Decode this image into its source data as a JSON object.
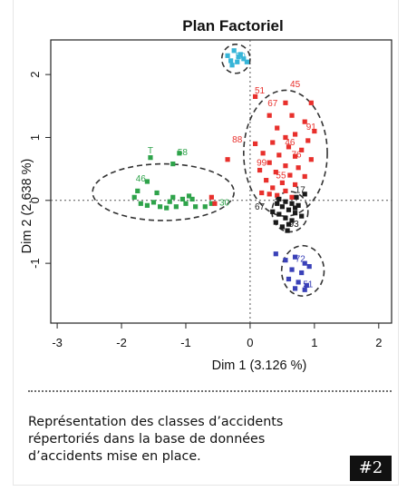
{
  "caption": "Représentation des classes d’accidents répertoriés dans la base de données d’accidents mise en place.",
  "badge": "#2",
  "colors": {
    "green": "#2ea34a",
    "red": "#e8302c",
    "black": "#1a1a1a",
    "blue": "#3a41b8",
    "cyan": "#37b5d8"
  },
  "chart_data": {
    "type": "scatter",
    "title": "Plan Factoriel",
    "xlabel": "Dim 1 (3.126 %)",
    "ylabel": "Dim 2 (2.638 %)",
    "xlim": [
      -3.1,
      2.2
    ],
    "ylim": [
      -1.95,
      2.55
    ],
    "xticks": [
      -3,
      -2,
      -1,
      0,
      1,
      2
    ],
    "yticks": [
      2,
      1,
      0,
      -1
    ],
    "reference_lines": {
      "x": 0,
      "y": 0,
      "style": "dotted"
    },
    "series": [
      {
        "color": "#2ea34a",
        "ellipse": {
          "cx": -1.35,
          "cy": 0.13,
          "rx": 1.1,
          "ry": 0.45
        },
        "points": [
          [
            -1.1,
            0.75
          ],
          [
            -1.55,
            0.68
          ],
          [
            -1.2,
            0.58
          ],
          [
            -1.6,
            0.3
          ],
          [
            -1.75,
            0.15
          ],
          [
            -1.45,
            0.12
          ],
          [
            -1.2,
            0.05
          ],
          [
            -1.05,
            0.02
          ],
          [
            -0.9,
            0.02
          ],
          [
            -1.7,
            -0.05
          ],
          [
            -1.6,
            -0.08
          ],
          [
            -1.3,
            -0.12
          ],
          [
            -1.15,
            -0.1
          ],
          [
            -1.0,
            -0.05
          ],
          [
            -0.85,
            -0.1
          ],
          [
            -0.7,
            -0.1
          ],
          [
            -1.5,
            -0.03
          ],
          [
            -1.25,
            -0.02
          ],
          [
            -0.6,
            -0.05
          ],
          [
            -1.8,
            0.05
          ],
          [
            -1.4,
            -0.1
          ],
          [
            -0.95,
            0.07
          ]
        ],
        "labels": [
          {
            "text": "58",
            "x": -1.05,
            "y": 0.72
          },
          {
            "text": "T",
            "x": -1.55,
            "y": 0.75
          },
          {
            "text": "46",
            "x": -1.7,
            "y": 0.3
          },
          {
            "text": "30",
            "x": -0.4,
            "y": -0.08
          }
        ]
      },
      {
        "color": "#e8302c",
        "ellipse": {
          "cx": 0.55,
          "cy": 0.75,
          "rx": 0.65,
          "ry": 1.0
        },
        "points": [
          [
            0.08,
            1.65
          ],
          [
            0.55,
            1.55
          ],
          [
            0.95,
            1.55
          ],
          [
            0.3,
            1.35
          ],
          [
            0.65,
            1.35
          ],
          [
            0.85,
            1.25
          ],
          [
            0.42,
            1.15
          ],
          [
            1.0,
            1.1
          ],
          [
            0.7,
            1.05
          ],
          [
            0.55,
            1.0
          ],
          [
            0.9,
            0.95
          ],
          [
            0.35,
            0.92
          ],
          [
            0.6,
            0.85
          ],
          [
            0.8,
            0.8
          ],
          [
            0.2,
            0.75
          ],
          [
            0.45,
            0.72
          ],
          [
            0.7,
            0.7
          ],
          [
            0.95,
            0.65
          ],
          [
            0.3,
            0.6
          ],
          [
            0.55,
            0.55
          ],
          [
            0.75,
            0.52
          ],
          [
            0.15,
            0.48
          ],
          [
            0.4,
            0.45
          ],
          [
            0.62,
            0.4
          ],
          [
            0.85,
            0.38
          ],
          [
            0.25,
            0.32
          ],
          [
            0.5,
            0.28
          ],
          [
            0.7,
            0.25
          ],
          [
            0.35,
            0.2
          ],
          [
            0.55,
            0.15
          ],
          [
            0.18,
            0.12
          ],
          [
            0.42,
            0.08
          ],
          [
            0.65,
            0.05
          ],
          [
            -0.35,
            0.65
          ],
          [
            -0.6,
            0.05
          ],
          [
            -0.55,
            -0.05
          ],
          [
            0.08,
            0.9
          ],
          [
            0.3,
            0.1
          ]
        ],
        "labels": [
          {
            "text": "45",
            "x": 0.7,
            "y": 1.8
          },
          {
            "text": "51",
            "x": 0.15,
            "y": 1.7
          },
          {
            "text": "67",
            "x": 0.35,
            "y": 1.5
          },
          {
            "text": "91",
            "x": 0.95,
            "y": 1.12
          },
          {
            "text": "88",
            "x": -0.2,
            "y": 0.92
          },
          {
            "text": "46",
            "x": 0.62,
            "y": 0.88
          },
          {
            "text": "76",
            "x": 0.72,
            "y": 0.68
          },
          {
            "text": "99",
            "x": 0.18,
            "y": 0.55
          },
          {
            "text": "55",
            "x": 0.48,
            "y": 0.35
          }
        ]
      },
      {
        "color": "#1a1a1a",
        "ellipse": {
          "cx": 0.62,
          "cy": -0.18,
          "rx": 0.28,
          "ry": 0.32
        },
        "points": [
          [
            0.45,
            0.02
          ],
          [
            0.55,
            -0.02
          ],
          [
            0.65,
            -0.05
          ],
          [
            0.75,
            -0.08
          ],
          [
            0.5,
            -0.1
          ],
          [
            0.6,
            -0.15
          ],
          [
            0.7,
            -0.2
          ],
          [
            0.45,
            -0.22
          ],
          [
            0.55,
            -0.28
          ],
          [
            0.65,
            -0.32
          ],
          [
            0.4,
            -0.35
          ],
          [
            0.6,
            -0.38
          ],
          [
            0.5,
            -0.42
          ],
          [
            0.7,
            -0.12
          ],
          [
            0.8,
            -0.25
          ],
          [
            0.35,
            -0.18
          ],
          [
            0.42,
            -0.05
          ],
          [
            0.58,
            -0.48
          ],
          [
            0.85,
            0.1
          ],
          [
            0.72,
            0.05
          ]
        ],
        "labels": [
          {
            "text": "17",
            "x": 0.78,
            "y": 0.12
          },
          {
            "text": "67",
            "x": 0.15,
            "y": -0.15
          },
          {
            "text": "93",
            "x": 0.68,
            "y": -0.42
          }
        ]
      },
      {
        "color": "#3a41b8",
        "ellipse": {
          "cx": 0.82,
          "cy": -1.12,
          "rx": 0.33,
          "ry": 0.4
        },
        "points": [
          [
            0.55,
            -0.95
          ],
          [
            0.7,
            -0.9
          ],
          [
            0.85,
            -1.0
          ],
          [
            0.65,
            -1.1
          ],
          [
            0.8,
            -1.15
          ],
          [
            0.92,
            -1.05
          ],
          [
            0.6,
            -1.25
          ],
          [
            0.75,
            -1.3
          ],
          [
            0.88,
            -1.35
          ],
          [
            0.7,
            -1.4
          ],
          [
            0.85,
            -1.42
          ],
          [
            0.4,
            -0.85
          ]
        ],
        "labels": [
          {
            "text": "72",
            "x": 0.78,
            "y": -0.98
          },
          {
            "text": "51",
            "x": 0.9,
            "y": -1.38
          }
        ]
      },
      {
        "color": "#37b5d8",
        "ellipse": {
          "cx": -0.22,
          "cy": 2.25,
          "rx": 0.22,
          "ry": 0.23
        },
        "points": [
          [
            -0.35,
            2.3
          ],
          [
            -0.25,
            2.38
          ],
          [
            -0.15,
            2.32
          ],
          [
            -0.3,
            2.22
          ],
          [
            -0.2,
            2.2
          ],
          [
            -0.1,
            2.25
          ],
          [
            -0.28,
            2.15
          ],
          [
            -0.18,
            2.28
          ],
          [
            -0.05,
            2.2
          ]
        ],
        "labels": [
          {
            "text": "50",
            "x": -0.15,
            "y": 2.25
          }
        ]
      }
    ]
  }
}
